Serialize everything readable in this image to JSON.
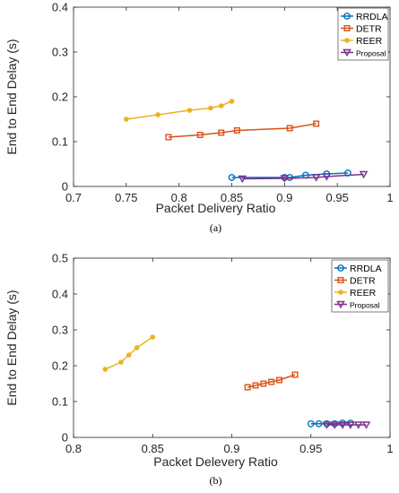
{
  "chart_data": [
    {
      "type": "line",
      "caption": "(a)",
      "xlabel": "Packet Delivery Ratio",
      "ylabel": "End to End Delay (s)",
      "xlim": [
        0.7,
        1.0
      ],
      "ylim": [
        0,
        0.4
      ],
      "xticks": [
        "0.7",
        "0.75",
        "0.8",
        "0.85",
        "0.9",
        "0.95",
        "1"
      ],
      "yticks": [
        "0",
        "0.1",
        "0.2",
        "0.3",
        "0.4"
      ],
      "grid": false,
      "legend_position": "top-right",
      "series": [
        {
          "name": "RRDLA",
          "marker": "circle",
          "color": "#0072BD",
          "x": [
            0.85,
            0.9,
            0.905,
            0.92,
            0.94,
            0.96
          ],
          "y": [
            0.02,
            0.02,
            0.02,
            0.025,
            0.028,
            0.03
          ]
        },
        {
          "name": "DETR",
          "marker": "square",
          "color": "#D95319",
          "x": [
            0.79,
            0.82,
            0.84,
            0.855,
            0.905,
            0.93
          ],
          "y": [
            0.11,
            0.115,
            0.12,
            0.125,
            0.13,
            0.14
          ]
        },
        {
          "name": "REER",
          "marker": "dot",
          "color": "#EDB120",
          "x": [
            0.75,
            0.78,
            0.81,
            0.83,
            0.84,
            0.85
          ],
          "y": [
            0.15,
            0.16,
            0.17,
            0.175,
            0.18,
            0.19
          ]
        },
        {
          "name": "Proposal",
          "marker": "triangle-down",
          "color": "#7E2F8E",
          "x": [
            0.86,
            0.9,
            0.93,
            0.94,
            0.975
          ],
          "y": [
            0.017,
            0.018,
            0.02,
            0.022,
            0.027
          ]
        }
      ]
    },
    {
      "type": "line",
      "caption": "(b)",
      "xlabel": "Packet Delevery Ratio",
      "ylabel": "End to End Delay (s)",
      "xlim": [
        0.8,
        1.0
      ],
      "ylim": [
        0,
        0.5
      ],
      "xticks": [
        "0.8",
        "0.85",
        "0.9",
        "0.95",
        "1"
      ],
      "yticks": [
        "0",
        "0.1",
        "0.2",
        "0.3",
        "0.4",
        "0.5"
      ],
      "grid": false,
      "legend_position": "top-right",
      "series": [
        {
          "name": "RRDLA",
          "marker": "circle",
          "color": "#0072BD",
          "x": [
            0.95,
            0.955,
            0.96,
            0.965,
            0.97,
            0.975
          ],
          "y": [
            0.038,
            0.038,
            0.038,
            0.038,
            0.04,
            0.04
          ]
        },
        {
          "name": "DETR",
          "marker": "square",
          "color": "#D95319",
          "x": [
            0.91,
            0.915,
            0.92,
            0.925,
            0.93,
            0.94
          ],
          "y": [
            0.14,
            0.145,
            0.15,
            0.155,
            0.16,
            0.175
          ]
        },
        {
          "name": "REER",
          "marker": "dot",
          "color": "#EDB120",
          "x": [
            0.82,
            0.83,
            0.835,
            0.84,
            0.85
          ],
          "y": [
            0.19,
            0.21,
            0.23,
            0.25,
            0.28
          ]
        },
        {
          "name": "Proposal",
          "marker": "triangle-down",
          "color": "#7E2F8E",
          "x": [
            0.96,
            0.965,
            0.97,
            0.975,
            0.98,
            0.985
          ],
          "y": [
            0.035,
            0.035,
            0.035,
            0.035,
            0.035,
            0.035
          ]
        }
      ]
    }
  ]
}
